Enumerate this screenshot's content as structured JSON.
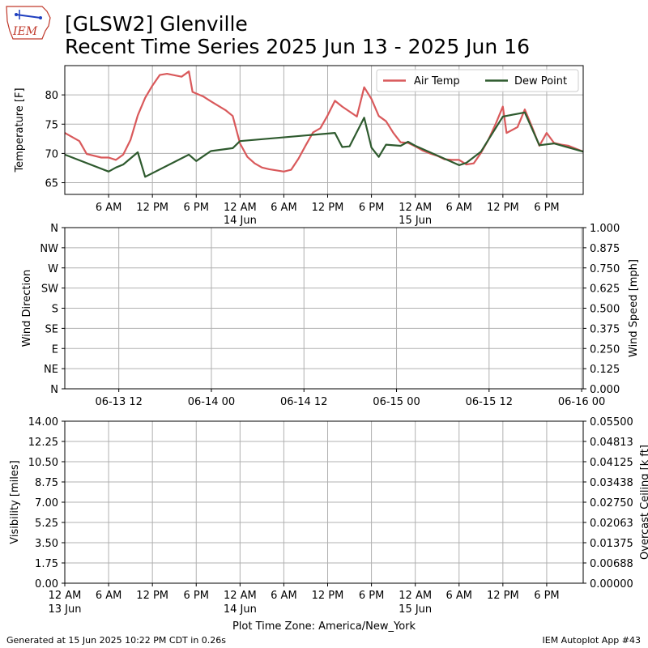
{
  "header": {
    "logo_text": "IEM",
    "title_line1": "[GLSW2] Glenville",
    "title_line2": "Recent Time Series 2025 Jun 13 - 2025 Jun 16"
  },
  "footer": {
    "generated": "Generated at 15 Jun 2025 10:22 PM CDT in 0.26s",
    "app": "IEM Autoplot App #43"
  },
  "colors": {
    "air_temp": "#d9595b",
    "dew_point": "#2e5a2e",
    "grid": "#b0b0b0"
  },
  "chart_data": [
    {
      "type": "line",
      "ylabel": "Temperature [F]",
      "ylim": [
        63,
        85
      ],
      "yticks": [
        65,
        70,
        75,
        80
      ],
      "xlim": [
        0,
        71
      ],
      "xlabel": "",
      "x_unit": "hours after 12 AM 13 Jun",
      "xticks": [
        {
          "x": 6,
          "label": "6 AM"
        },
        {
          "x": 12,
          "label": "12 PM"
        },
        {
          "x": 18,
          "label": "6 PM"
        },
        {
          "x": 24,
          "label": "12 AM",
          "sub": "14 Jun"
        },
        {
          "x": 30,
          "label": "6 AM"
        },
        {
          "x": 36,
          "label": "12 PM"
        },
        {
          "x": 42,
          "label": "6 PM"
        },
        {
          "x": 48,
          "label": "12 AM",
          "sub": "15 Jun"
        },
        {
          "x": 54,
          "label": "6 AM"
        },
        {
          "x": 60,
          "label": "12 PM"
        },
        {
          "x": 66,
          "label": "6 PM"
        }
      ],
      "legend": "top-right",
      "grid": true,
      "series": [
        {
          "name": "Air Temp",
          "x": [
            0,
            2,
            3,
            5,
            6,
            7,
            8,
            9,
            10,
            11,
            12,
            13,
            14,
            16,
            17,
            17.5,
            19,
            20,
            22,
            23,
            24,
            25,
            26,
            27,
            28,
            30,
            31,
            32,
            33,
            34,
            35,
            36,
            37,
            38,
            40,
            41,
            42,
            43,
            44,
            45,
            46,
            47,
            48,
            49,
            50,
            51,
            52,
            53,
            54,
            55,
            56,
            57,
            58,
            59,
            60,
            60.5,
            62,
            63,
            64,
            65,
            66,
            67,
            68,
            69,
            71
          ],
          "y": [
            73.5,
            72.1,
            69.9,
            69.3,
            69.3,
            68.9,
            69.8,
            72.3,
            76.5,
            79.5,
            81.6,
            83.4,
            83.6,
            83.1,
            84.0,
            80.5,
            79.7,
            78.9,
            77.4,
            76.4,
            71.7,
            69.4,
            68.3,
            67.6,
            67.3,
            66.9,
            67.2,
            69.1,
            71.4,
            73.6,
            74.3,
            76.5,
            79.0,
            78.0,
            76.3,
            81.3,
            79.3,
            76.4,
            75.5,
            73.5,
            71.9,
            71.8,
            71.2,
            70.5,
            70.0,
            69.6,
            69.0,
            68.9,
            68.9,
            68.1,
            68.3,
            70.1,
            72.3,
            75.0,
            78.0,
            73.5,
            74.5,
            77.5,
            74.5,
            71.3,
            73.5,
            71.8,
            71.5,
            71.3,
            70.3
          ]
        },
        {
          "name": "Dew Point",
          "x": [
            0,
            6,
            7,
            8,
            10,
            11,
            17,
            18,
            20,
            23,
            24,
            37,
            38,
            39,
            41,
            42,
            43,
            44,
            46,
            47,
            48,
            54,
            55,
            57,
            60,
            63,
            65,
            67,
            71
          ],
          "y": [
            69.8,
            66.9,
            67.6,
            68.1,
            70.2,
            66.0,
            69.8,
            68.7,
            70.4,
            70.9,
            72.1,
            73.5,
            71.1,
            71.2,
            76.1,
            71.0,
            69.4,
            71.5,
            71.3,
            72.0,
            71.3,
            68.0,
            68.4,
            70.3,
            76.3,
            77.0,
            71.4,
            71.7,
            70.3
          ]
        }
      ]
    },
    {
      "type": "line",
      "ylabel": "Wind Direction",
      "ylabel_right": "Wind Speed [mph]",
      "ylim": [
        0,
        360
      ],
      "yticks": [
        "N",
        "NE",
        "E",
        "SE",
        "S",
        "SW",
        "W",
        "NW",
        "N"
      ],
      "yticks_right": [
        "0.000",
        "0.125",
        "0.250",
        "0.375",
        "0.500",
        "0.625",
        "0.750",
        "0.875",
        "1.000"
      ],
      "ylim_right": [
        0,
        1
      ],
      "xticks": [
        {
          "x": 12,
          "label": "06-13 12"
        },
        {
          "x": 24,
          "label": "06-14 00"
        },
        {
          "x": 36,
          "label": "06-14 12"
        },
        {
          "x": 48,
          "label": "06-15 00"
        },
        {
          "x": 60,
          "label": "06-15 12"
        },
        {
          "x": 72,
          "label": "06-16 00"
        }
      ],
      "grid": true,
      "series": []
    },
    {
      "type": "line",
      "ylabel": "Visibility [miles]",
      "ylabel_right": "Overcast Ceiling [k ft]",
      "ylim": [
        0,
        14
      ],
      "yticks": [
        "0.00",
        "1.75",
        "3.50",
        "5.25",
        "7.00",
        "8.75",
        "10.50",
        "12.25",
        "14.00"
      ],
      "yticks_right": [
        "0.00000",
        "0.00688",
        "0.01375",
        "0.02063",
        "0.02750",
        "0.03438",
        "0.04125",
        "0.04813",
        "0.05500"
      ],
      "ylim_right": [
        0,
        0.055
      ],
      "xlabel": "Plot Time Zone: America/New_York",
      "xticks": [
        {
          "x": 0,
          "label": "12 AM",
          "sub": "13 Jun"
        },
        {
          "x": 6,
          "label": "6 AM"
        },
        {
          "x": 12,
          "label": "12 PM"
        },
        {
          "x": 18,
          "label": "6 PM"
        },
        {
          "x": 24,
          "label": "12 AM",
          "sub": "14 Jun"
        },
        {
          "x": 30,
          "label": "6 AM"
        },
        {
          "x": 36,
          "label": "12 PM"
        },
        {
          "x": 42,
          "label": "6 PM"
        },
        {
          "x": 48,
          "label": "12 AM",
          "sub": "15 Jun"
        },
        {
          "x": 54,
          "label": "6 AM"
        },
        {
          "x": 60,
          "label": "12 PM"
        },
        {
          "x": 66,
          "label": "6 PM"
        }
      ],
      "grid": true,
      "series": []
    }
  ]
}
